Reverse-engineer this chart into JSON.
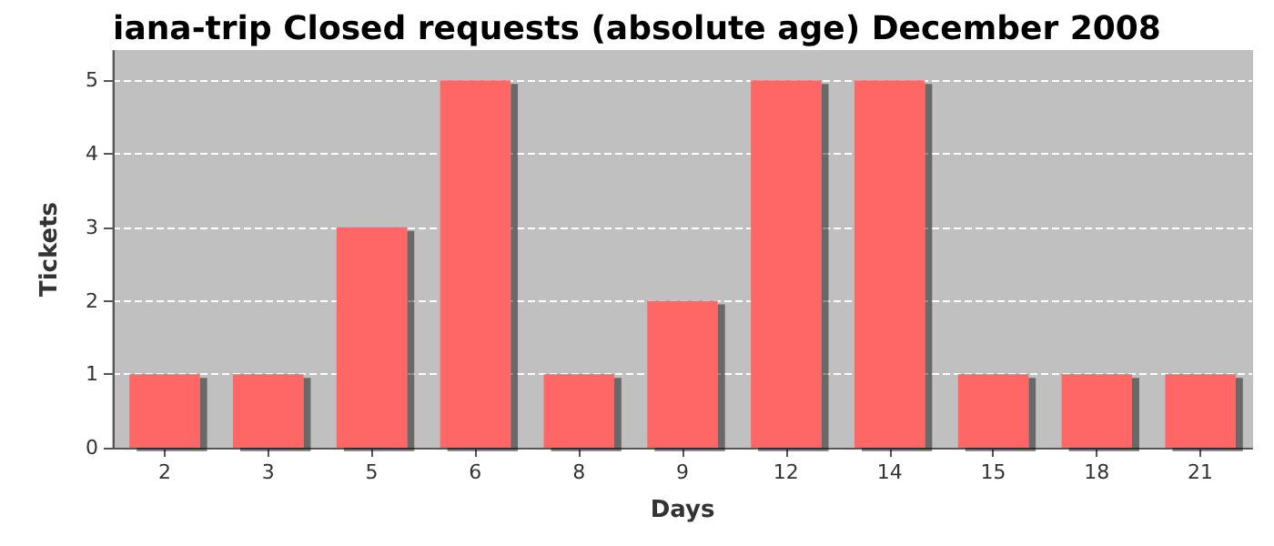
{
  "chart_data": {
    "type": "bar",
    "title": "iana-trip Closed requests (absolute age) December 2008",
    "xlabel": "Days",
    "ylabel": "Tickets",
    "categories": [
      "2",
      "3",
      "5",
      "6",
      "8",
      "9",
      "12",
      "14",
      "15",
      "18",
      "21"
    ],
    "values": [
      1,
      1,
      3,
      5,
      1,
      2,
      5,
      5,
      1,
      1,
      1
    ],
    "color": "#ff6666",
    "ylim": [
      0,
      5.4
    ],
    "yticks": [
      0,
      1,
      2,
      3,
      4,
      5
    ],
    "grid": "y"
  }
}
